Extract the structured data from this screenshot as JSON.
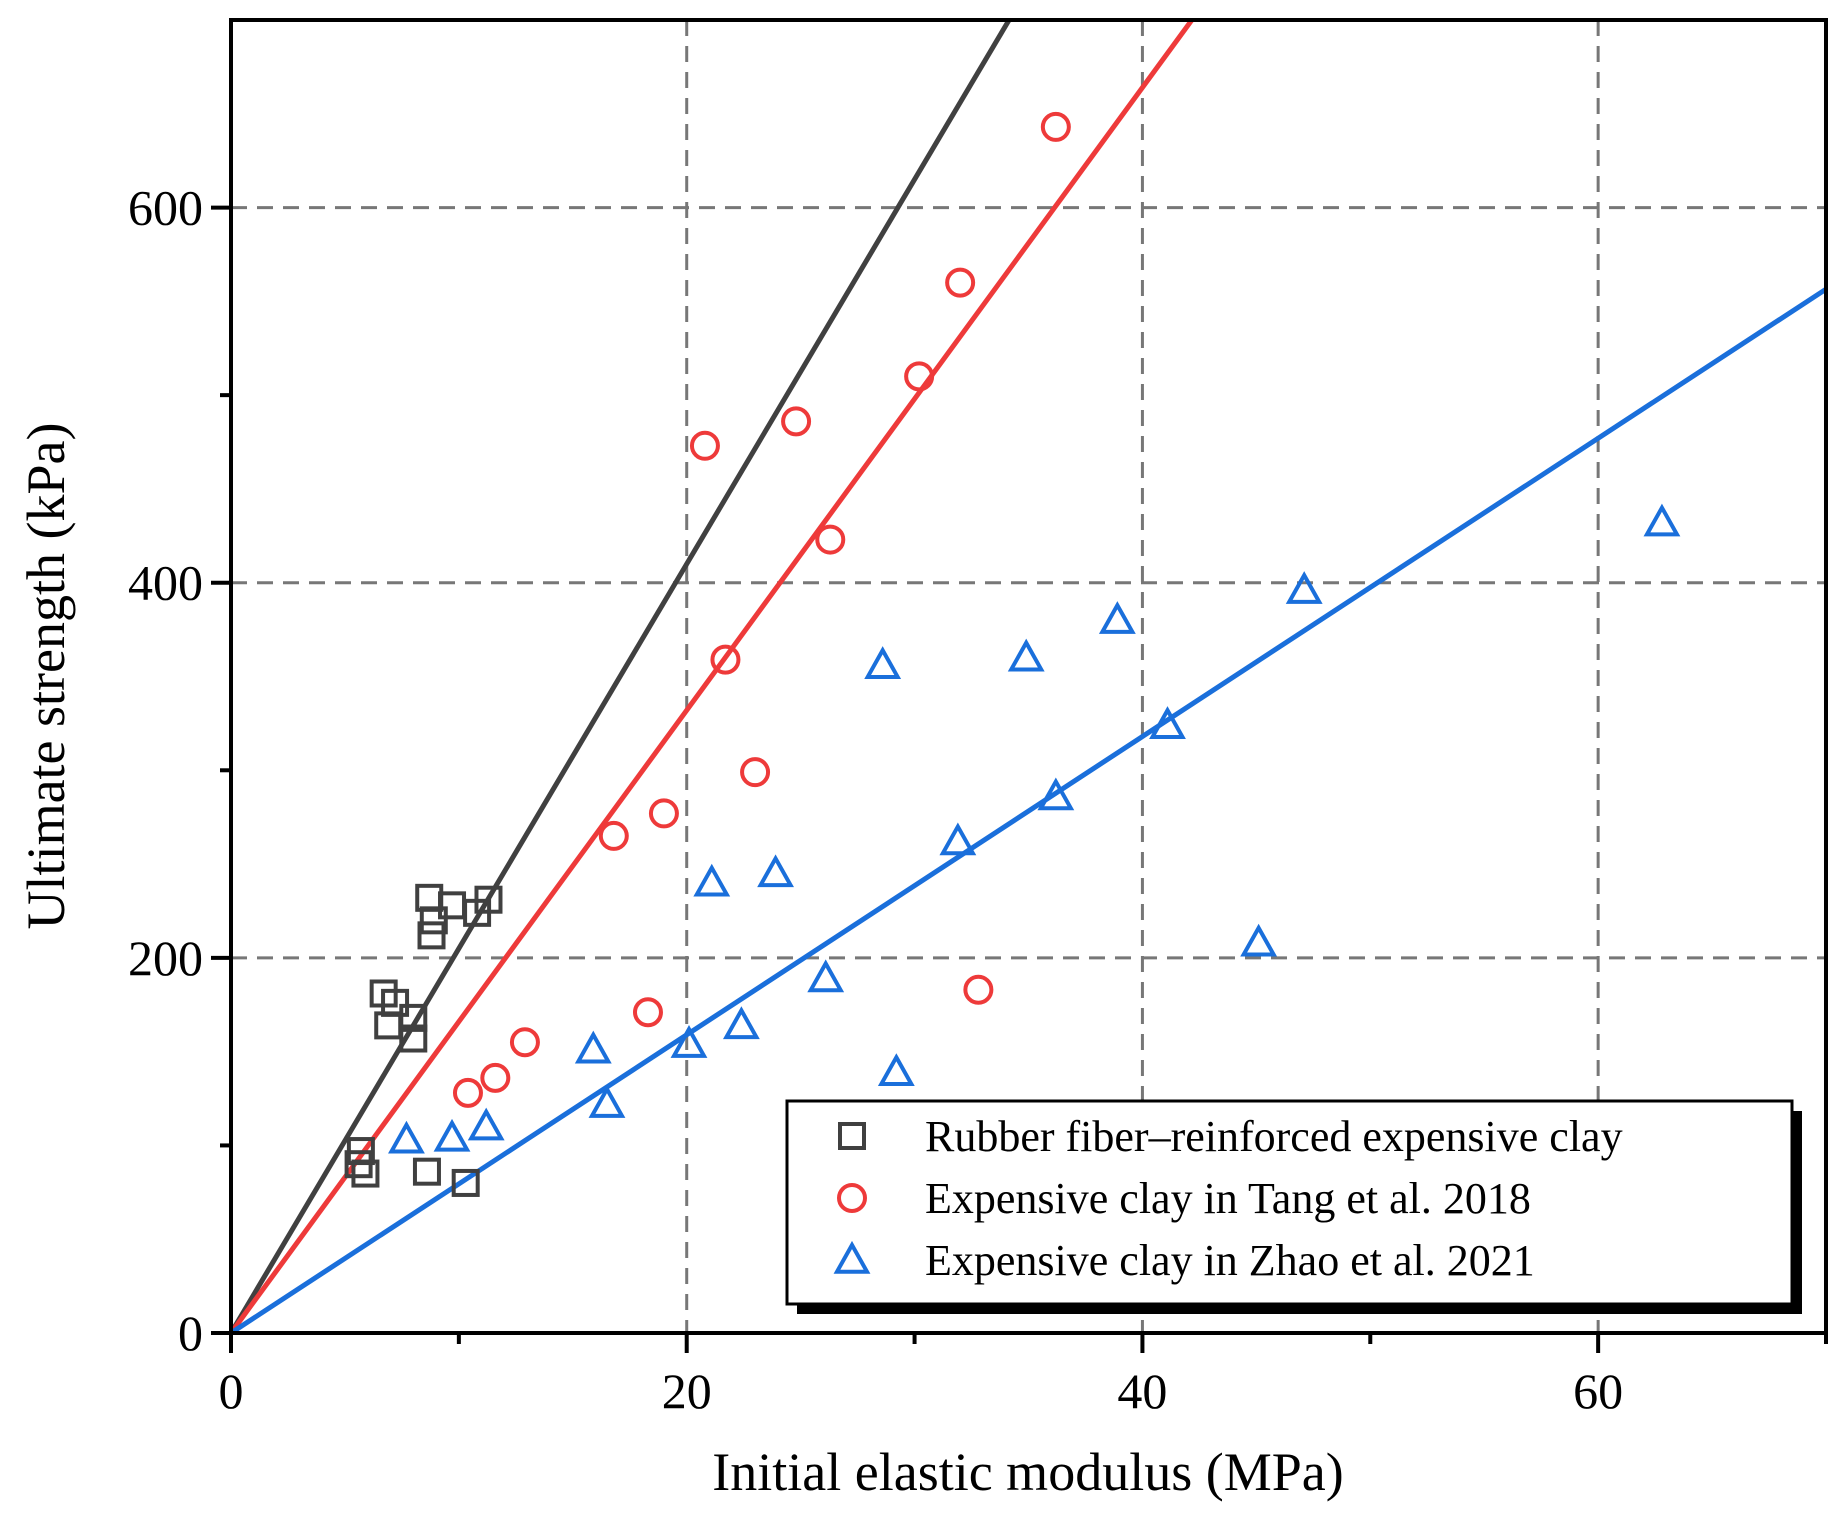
{
  "chart_data": {
    "type": "scatter",
    "title": "",
    "xlabel": "Initial elastic modulus (MPa)",
    "ylabel": "Ultimate strength (kPa)",
    "xlim": [
      0,
      70
    ],
    "ylim": [
      0,
      700
    ],
    "xticks": [
      0,
      20,
      40,
      60
    ],
    "yticks": [
      0,
      200,
      400,
      600
    ],
    "x_minor_ticks": [
      10,
      30,
      50,
      70
    ],
    "y_minor_ticks": [
      100,
      300,
      500
    ],
    "x_gridlines": [
      20,
      40,
      60
    ],
    "y_gridlines": [
      200,
      400,
      600
    ],
    "grid": "dashed",
    "legend_position": "bottom-right",
    "series": [
      {
        "name": "Rubber fiber–reinforced expensive clay",
        "marker": "square",
        "color": "#404040",
        "points": [
          [
            5.7,
            97
          ],
          [
            5.6,
            90
          ],
          [
            5.9,
            85
          ],
          [
            6.7,
            181
          ],
          [
            7.2,
            176
          ],
          [
            6.9,
            164
          ],
          [
            8.0,
            168
          ],
          [
            8.0,
            157
          ],
          [
            8.6,
            86
          ],
          [
            8.7,
            232
          ],
          [
            8.9,
            220
          ],
          [
            8.8,
            212
          ],
          [
            9.7,
            228
          ],
          [
            10.3,
            80
          ],
          [
            10.8,
            224
          ],
          [
            11.3,
            231
          ]
        ],
        "fit_slope": 20.5
      },
      {
        "name": "Expensive clay in Tang et al. 2018",
        "marker": "circle",
        "color": "#ee3a3a",
        "points": [
          [
            10.4,
            128
          ],
          [
            11.6,
            136
          ],
          [
            12.9,
            155
          ],
          [
            16.8,
            265
          ],
          [
            18.3,
            171
          ],
          [
            19.0,
            277
          ],
          [
            20.8,
            473
          ],
          [
            21.7,
            359
          ],
          [
            23.0,
            299
          ],
          [
            24.8,
            486
          ],
          [
            26.3,
            423
          ],
          [
            30.2,
            510
          ],
          [
            32.0,
            560
          ],
          [
            32.8,
            183
          ],
          [
            36.2,
            643
          ]
        ],
        "fit_slope": 16.6
      },
      {
        "name": "Expensive clay in Zhao et al. 2021",
        "marker": "triangle",
        "color": "#1a6fdb",
        "points": [
          [
            7.7,
            103
          ],
          [
            9.7,
            104
          ],
          [
            11.2,
            110
          ],
          [
            15.9,
            151
          ],
          [
            16.5,
            122
          ],
          [
            20.1,
            154
          ],
          [
            21.1,
            240
          ],
          [
            22.4,
            164
          ],
          [
            23.9,
            245
          ],
          [
            26.1,
            189
          ],
          [
            28.6,
            356
          ],
          [
            29.2,
            139
          ],
          [
            31.9,
            262
          ],
          [
            34.9,
            360
          ],
          [
            36.2,
            286
          ],
          [
            38.9,
            380
          ],
          [
            41.1,
            324
          ],
          [
            45.1,
            208
          ],
          [
            47.1,
            396
          ],
          [
            62.8,
            432
          ]
        ],
        "fit_slope": 7.95
      }
    ]
  }
}
